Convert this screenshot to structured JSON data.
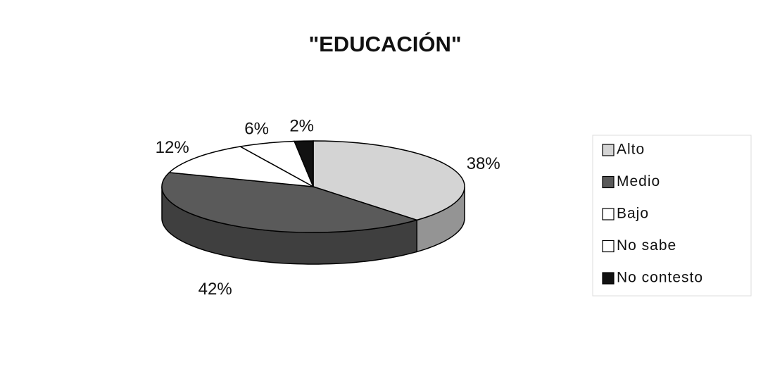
{
  "chart_data": {
    "type": "pie",
    "title": "\"EDUCACIÓN\"",
    "categories": [
      "Alto",
      "Medio",
      "Bajo",
      "No sabe",
      "No contesto"
    ],
    "values": [
      38,
      42,
      12,
      6,
      2
    ],
    "value_labels": [
      "38%",
      "42%",
      "12%",
      "6%",
      "2%"
    ],
    "colors": [
      "#d4d4d4",
      "#5a5a5a",
      "#ffffff",
      "#ffffff",
      "#111111"
    ],
    "legend": "right"
  }
}
